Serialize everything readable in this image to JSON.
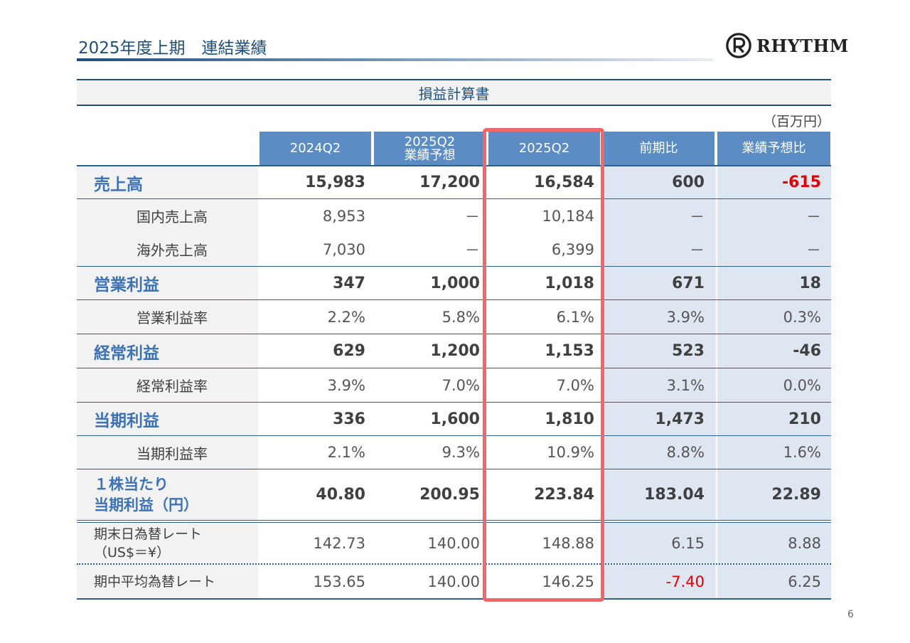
{
  "header": {
    "title": "2025年度上期　連結業績",
    "logo_text": "RHYTHM"
  },
  "table": {
    "section_title": "損益計算書",
    "unit": "（百万円）",
    "columns": [
      "2024Q2",
      "2025Q2\n業績予想",
      "2025Q2",
      "前期比",
      "業績予想比"
    ],
    "rows": [
      {
        "label": "売上高",
        "values": [
          "15,983",
          "17,200",
          "16,584",
          "600",
          "-615"
        ]
      },
      {
        "label": "国内売上高",
        "values": [
          "8,953",
          "－",
          "10,184",
          "－",
          "－"
        ]
      },
      {
        "label": "海外売上高",
        "values": [
          "7,030",
          "－",
          "6,399",
          "－",
          "－"
        ]
      },
      {
        "label": "営業利益",
        "values": [
          "347",
          "1,000",
          "1,018",
          "671",
          "18"
        ]
      },
      {
        "label": "営業利益率",
        "values": [
          "2.2%",
          "5.8%",
          "6.1%",
          "3.9%",
          "0.3%"
        ]
      },
      {
        "label": "経常利益",
        "values": [
          "629",
          "1,200",
          "1,153",
          "523",
          "-46"
        ]
      },
      {
        "label": "経常利益率",
        "values": [
          "3.9%",
          "7.0%",
          "7.0%",
          "3.1%",
          "0.0%"
        ]
      },
      {
        "label": "当期利益",
        "values": [
          "336",
          "1,600",
          "1,810",
          "1,473",
          "210"
        ]
      },
      {
        "label": "当期利益率",
        "values": [
          "2.1%",
          "9.3%",
          "10.9%",
          "8.8%",
          "1.6%"
        ]
      },
      {
        "label": "１株当たり\n当期利益（円）",
        "values": [
          "40.80",
          "200.95",
          "223.84",
          "183.04",
          "22.89"
        ]
      },
      {
        "label": "期末日為替レート\n（US$＝¥）",
        "values": [
          "142.73",
          "140.00",
          "148.88",
          "6.15",
          "8.88"
        ]
      },
      {
        "label": "期中平均為替レート",
        "values": [
          "153.65",
          "140.00",
          "146.25",
          "-7.40",
          "6.25"
        ]
      }
    ]
  },
  "colors": {
    "title_blue": "#1f4e79",
    "header_blue": "#5b8cc4",
    "label_blue": "#3d72b4",
    "negative_red": "#e00000",
    "highlight_red": "#f0666b"
  },
  "page_number": "6"
}
